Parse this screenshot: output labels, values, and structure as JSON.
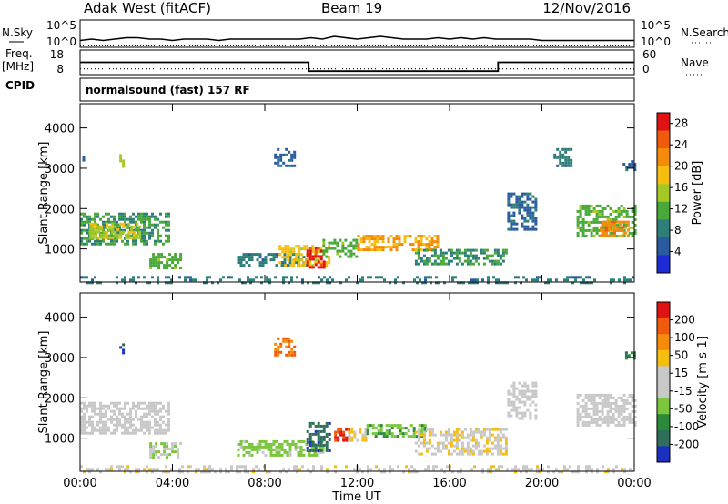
{
  "header": {
    "station": "Adak West (fitACF)",
    "beam": "Beam 19",
    "date": "12/Nov/2016"
  },
  "top_panels": {
    "nsky_label": "N.Sky",
    "nsearch_label": "N.Search",
    "nsky_ticks": [
      "10^5",
      "10^0"
    ],
    "freq_label_1": "Freq.",
    "freq_label_2": "[MHz]",
    "freq_ticks": [
      "18",
      "8"
    ],
    "nave_label": "Nave",
    "nave_ticks": [
      "60",
      "0"
    ],
    "cpid_label": "CPID",
    "mode_text": "normalsound (fast) 157 RF"
  },
  "colors": {
    "power_scale": [
      "#1f2bd6",
      "#2a5aa0",
      "#2e7f78",
      "#48a83a",
      "#a6c826",
      "#f5be0f",
      "#f58b0a",
      "#ef5a0c",
      "#e01212"
    ],
    "velocity_scale": [
      "#1d2fc0",
      "#2e6e5a",
      "#2a8a3a",
      "#7ac63c",
      "#c8c8c8",
      "#c8c8c8",
      "#f5be0f",
      "#f58b0a",
      "#ef5a0c",
      "#e01212"
    ],
    "ground_scatter": "#b8b8b8"
  },
  "chart_data": [
    {
      "type": "line",
      "panel": "N.Sky / N.Search",
      "x_unit": "hours UT",
      "xlim": [
        0,
        24
      ],
      "series": [
        {
          "name": "N.Sky",
          "x": [
            0,
            0.5,
            1,
            1.5,
            2,
            2.5,
            3,
            3.5,
            4,
            4.5,
            5,
            5.5,
            6,
            6.5,
            7,
            7.5,
            8,
            8.5,
            9,
            9.5,
            10,
            10.5,
            11,
            11.5,
            12,
            12.5,
            13,
            13.5,
            14,
            14.5,
            15,
            15.5,
            16,
            16.5,
            17,
            17.5,
            18,
            18.5,
            19,
            19.5,
            20,
            20.5,
            21,
            21.5,
            22,
            22.5,
            23,
            23.5,
            24
          ],
          "values": [
            0.25,
            0.3,
            0.25,
            0.3,
            0.35,
            0.35,
            0.3,
            0.3,
            0.25,
            0.3,
            0.3,
            0.3,
            0.25,
            0.3,
            0.3,
            0.3,
            0.3,
            0.3,
            0.3,
            0.3,
            0.35,
            0.3,
            0.4,
            0.35,
            0.3,
            0.35,
            0.4,
            0.35,
            0.3,
            0.3,
            0.3,
            0.35,
            0.3,
            0.35,
            0.3,
            0.35,
            0.3,
            0.3,
            0.3,
            0.3,
            0.25,
            0.25,
            0.25,
            0.25,
            0.25,
            0.25,
            0.25,
            0.25,
            0.25
          ]
        },
        {
          "name": "N.Search",
          "x": [
            0,
            24
          ],
          "values": [
            0.05,
            0.05
          ]
        }
      ]
    },
    {
      "type": "line",
      "panel": "Freq. / Nave",
      "x_unit": "hours UT",
      "xlim": [
        0,
        24
      ],
      "series": [
        {
          "name": "Freq.",
          "x": [
            0,
            9.9,
            9.9,
            18.1,
            18.1,
            24
          ],
          "values": [
            13,
            13,
            9.4,
            9.4,
            13,
            13
          ],
          "ylim": [
            8,
            18
          ]
        },
        {
          "name": "Nave",
          "x": [
            0,
            24
          ],
          "values": [
            14,
            14
          ],
          "ylim": [
            0,
            60
          ]
        }
      ]
    },
    {
      "type": "heatmap",
      "panel": "Power",
      "xlabel": "Time UT",
      "ylabel": "Slant Range [km]",
      "x_ticks": [
        "00:00",
        "04:00",
        "08:00",
        "12:00",
        "16:00",
        "20:00",
        "00:00"
      ],
      "y_ticks": [
        1000,
        2000,
        3000,
        4000
      ],
      "ylim": [
        180,
        4600
      ],
      "colorbar": {
        "label": "Power [dB]",
        "range": [
          0,
          30
        ],
        "ticks": [
          4,
          8,
          12,
          16,
          20,
          24,
          28
        ]
      },
      "echo_regions": [
        {
          "t0": 0.0,
          "t1": 3.8,
          "r0": 1100,
          "r1": 1900,
          "level": 10
        },
        {
          "t0": 0.4,
          "t1": 2.6,
          "r0": 1300,
          "r1": 1650,
          "level": 16
        },
        {
          "t0": 3.0,
          "t1": 4.4,
          "r0": 500,
          "r1": 900,
          "level": 12
        },
        {
          "t0": 6.8,
          "t1": 9.8,
          "r0": 600,
          "r1": 900,
          "level": 8
        },
        {
          "t0": 8.6,
          "t1": 10.8,
          "r0": 600,
          "r1": 1100,
          "level": 18
        },
        {
          "t0": 9.8,
          "t1": 10.6,
          "r0": 550,
          "r1": 1050,
          "level": 28
        },
        {
          "t0": 10.5,
          "t1": 12.0,
          "r0": 800,
          "r1": 1250,
          "level": 12
        },
        {
          "t0": 12.0,
          "t1": 15.5,
          "r0": 1000,
          "r1": 1350,
          "level": 20
        },
        {
          "t0": 14.5,
          "t1": 18.5,
          "r0": 600,
          "r1": 1000,
          "level": 10
        },
        {
          "t0": 18.5,
          "t1": 19.8,
          "r0": 1500,
          "r1": 2400,
          "level": 6
        },
        {
          "t0": 21.5,
          "t1": 24.0,
          "r0": 1300,
          "r1": 2100,
          "level": 12
        },
        {
          "t0": 22.5,
          "t1": 23.8,
          "r0": 1350,
          "r1": 1700,
          "level": 22
        },
        {
          "t0": 1.7,
          "t1": 1.9,
          "r0": 3050,
          "r1": 3350,
          "level": 14
        },
        {
          "t0": 0.1,
          "t1": 0.3,
          "r0": 3100,
          "r1": 3300,
          "level": 6
        },
        {
          "t0": 8.4,
          "t1": 9.3,
          "r0": 3050,
          "r1": 3500,
          "level": 6
        },
        {
          "t0": 20.5,
          "t1": 21.3,
          "r0": 3050,
          "r1": 3500,
          "level": 8
        },
        {
          "t0": 23.5,
          "t1": 24.0,
          "r0": 2950,
          "r1": 3200,
          "level": 6
        },
        {
          "t0": 0.0,
          "t1": 24.0,
          "r0": 180,
          "r1": 330,
          "level": 8
        }
      ]
    },
    {
      "type": "heatmap",
      "panel": "Velocity",
      "xlabel": "Time UT",
      "ylabel": "Slant Range [km]",
      "x_ticks": [
        "00:00",
        "04:00",
        "08:00",
        "12:00",
        "16:00",
        "20:00",
        "00:00"
      ],
      "y_ticks": [
        1000,
        2000,
        3000,
        4000
      ],
      "ylim": [
        180,
        4600
      ],
      "colorbar": {
        "label": "Velocity [m s-1]",
        "range": [
          -250,
          250
        ],
        "ticks": [
          200,
          100,
          50,
          15,
          -15,
          -50,
          -100,
          -200
        ]
      },
      "echo_regions": [
        {
          "t0": 0.0,
          "t1": 3.8,
          "r0": 1100,
          "r1": 1900,
          "level": 0
        },
        {
          "t0": 3.0,
          "t1": 4.4,
          "r0": 500,
          "r1": 900,
          "level": -40
        },
        {
          "t0": 6.8,
          "t1": 10.5,
          "r0": 550,
          "r1": 950,
          "level": -70
        },
        {
          "t0": 9.8,
          "t1": 10.8,
          "r0": 700,
          "r1": 1400,
          "level": -180
        },
        {
          "t0": 11.0,
          "t1": 11.6,
          "r0": 950,
          "r1": 1250,
          "level": 200
        },
        {
          "t0": 11.6,
          "t1": 12.4,
          "r0": 950,
          "r1": 1250,
          "level": 60
        },
        {
          "t0": 12.4,
          "t1": 15.0,
          "r0": 1050,
          "r1": 1350,
          "level": -90
        },
        {
          "t0": 14.5,
          "t1": 18.5,
          "r0": 600,
          "r1": 1250,
          "level": 40
        },
        {
          "t0": 18.5,
          "t1": 19.8,
          "r0": 1500,
          "r1": 2400,
          "level": 0
        },
        {
          "t0": 21.5,
          "t1": 24.0,
          "r0": 1300,
          "r1": 2100,
          "level": 0
        },
        {
          "t0": 1.7,
          "t1": 1.9,
          "r0": 3100,
          "r1": 3350,
          "level": -220
        },
        {
          "t0": 8.4,
          "t1": 9.3,
          "r0": 3050,
          "r1": 3500,
          "level": 150
        },
        {
          "t0": 23.6,
          "t1": 24.0,
          "r0": 2950,
          "r1": 3150,
          "level": -150
        },
        {
          "t0": 0.0,
          "t1": 24.0,
          "r0": 180,
          "r1": 330,
          "level": 30
        }
      ]
    }
  ]
}
